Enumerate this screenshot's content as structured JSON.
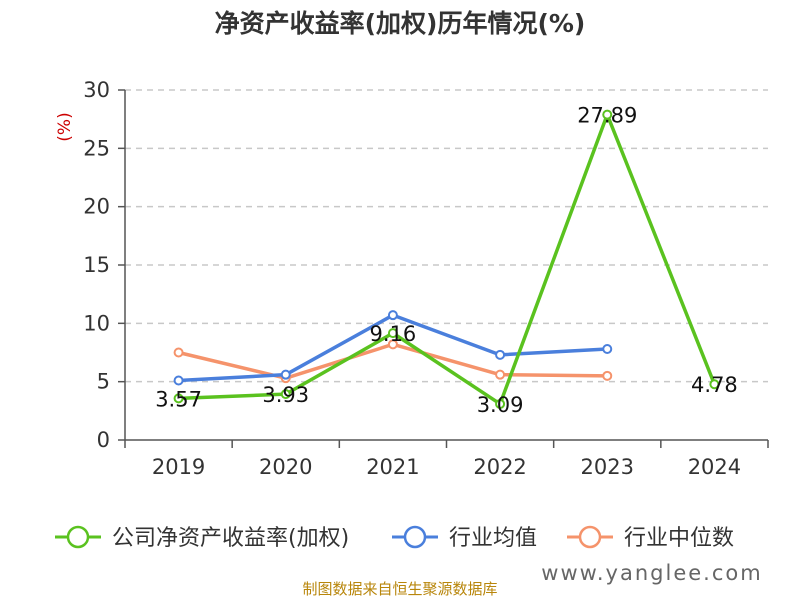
{
  "chart_data": {
    "type": "line",
    "title": "净资产收益率(加权)历年情况(%)",
    "ylabel": "(%)",
    "xlabel": "",
    "categories": [
      "2019",
      "2020",
      "2021",
      "2022",
      "2023",
      "2024"
    ],
    "ylim": [
      0,
      30
    ],
    "yticks": [
      0,
      5,
      10,
      15,
      20,
      25,
      30
    ],
    "grid": true,
    "legend_position": "bottom",
    "series": [
      {
        "name": "公司净资产收益率(加权)",
        "color": "#5ac21f",
        "values": [
          3.57,
          3.93,
          9.16,
          3.09,
          27.89,
          4.78
        ],
        "labels": [
          "3.57",
          "3.93",
          "9.16",
          "3.09",
          "27.89",
          "4.78"
        ]
      },
      {
        "name": "行业均值",
        "color": "#4a7fdc",
        "values": [
          5.1,
          5.6,
          10.7,
          7.3,
          7.8,
          null
        ]
      },
      {
        "name": "行业中位数",
        "color": "#f5936b",
        "values": [
          7.5,
          5.3,
          8.2,
          5.6,
          5.5,
          null
        ]
      }
    ]
  },
  "source_text": "制图数据来自恒生聚源数据库",
  "watermark": "www.yanglee.com"
}
